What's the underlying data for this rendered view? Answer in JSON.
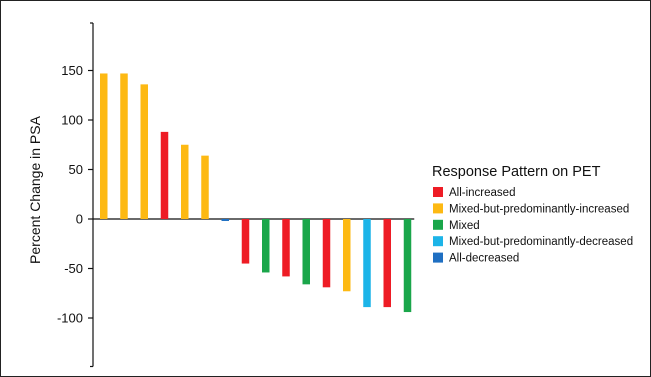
{
  "chart_data": {
    "type": "bar",
    "ylabel": "Percent Change in PSA",
    "ylim": [
      -150,
      200
    ],
    "yticks": [
      150,
      100,
      50,
      0,
      -50,
      -100
    ],
    "ytick_labels": [
      "150",
      "100",
      "50",
      "0",
      "-50",
      "-100"
    ],
    "legend": {
      "title": "Response Pattern on PET",
      "position": "right",
      "entries": [
        {
          "key": "all-increased",
          "label": "All-increased",
          "color": "#ee1c25"
        },
        {
          "key": "mixed-inc",
          "label": "Mixed-but-predominantly-increased",
          "color": "#fdb913"
        },
        {
          "key": "mixed",
          "label": "Mixed",
          "color": "#1aa64a"
        },
        {
          "key": "mixed-dec",
          "label": "Mixed-but-predominantly-decreased",
          "color": "#1cb4e8"
        },
        {
          "key": "all-decreased",
          "label": "All-decreased",
          "color": "#1f6fc2"
        }
      ]
    },
    "bars": [
      {
        "value": 147,
        "category": "mixed-inc"
      },
      {
        "value": 147,
        "category": "mixed-inc"
      },
      {
        "value": 136,
        "category": "mixed-inc"
      },
      {
        "value": 88,
        "category": "all-increased"
      },
      {
        "value": 75,
        "category": "mixed-inc"
      },
      {
        "value": 64,
        "category": "mixed-inc"
      },
      {
        "value": -2,
        "category": "all-decreased"
      },
      {
        "value": -45,
        "category": "all-increased"
      },
      {
        "value": -54,
        "category": "mixed"
      },
      {
        "value": -58,
        "category": "all-increased"
      },
      {
        "value": -66,
        "category": "mixed"
      },
      {
        "value": -69,
        "category": "all-increased"
      },
      {
        "value": -73,
        "category": "mixed-inc"
      },
      {
        "value": -89,
        "category": "mixed-dec"
      },
      {
        "value": -89,
        "category": "all-increased"
      },
      {
        "value": -94,
        "category": "mixed"
      }
    ]
  }
}
